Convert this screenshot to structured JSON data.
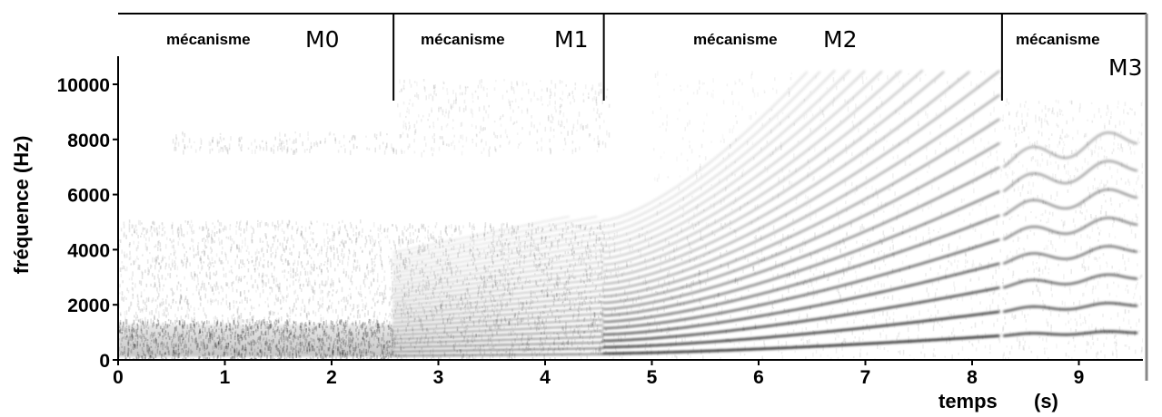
{
  "chart_data": {
    "type": "heatmap",
    "title": "",
    "xlabel": "temps",
    "xunit": "(s)",
    "ylabel": "fréquence (Hz)",
    "xlim": [
      0,
      9.6
    ],
    "ylim": [
      0,
      11000
    ],
    "x_ticks": [
      0,
      1,
      2,
      3,
      4,
      5,
      6,
      7,
      8,
      9
    ],
    "y_ticks": [
      0,
      2000,
      4000,
      6000,
      8000,
      10000
    ],
    "x_tick_labels": [
      "0",
      "1",
      "2",
      "3",
      "4",
      "5",
      "6",
      "7",
      "8",
      "9"
    ],
    "y_tick_labels": [
      "0",
      "2000",
      "4000",
      "6000",
      "8000",
      "10000"
    ],
    "grid": false,
    "colormap": "grayscale (darker = higher energy)",
    "boundaries_s": [
      2.58,
      4.55,
      8.28
    ],
    "regions": [
      {
        "word": "mécanisme",
        "tag": "M0",
        "start": 0,
        "end": 2.58
      },
      {
        "word": "mécanisme",
        "tag": "M1",
        "start": 2.58,
        "end": 4.55
      },
      {
        "word": "mécanisme",
        "tag": "M2",
        "start": 4.55,
        "end": 8.28
      },
      {
        "word": "mécanisme",
        "tag": "M3",
        "start": 8.28,
        "end": 9.6
      }
    ]
  }
}
